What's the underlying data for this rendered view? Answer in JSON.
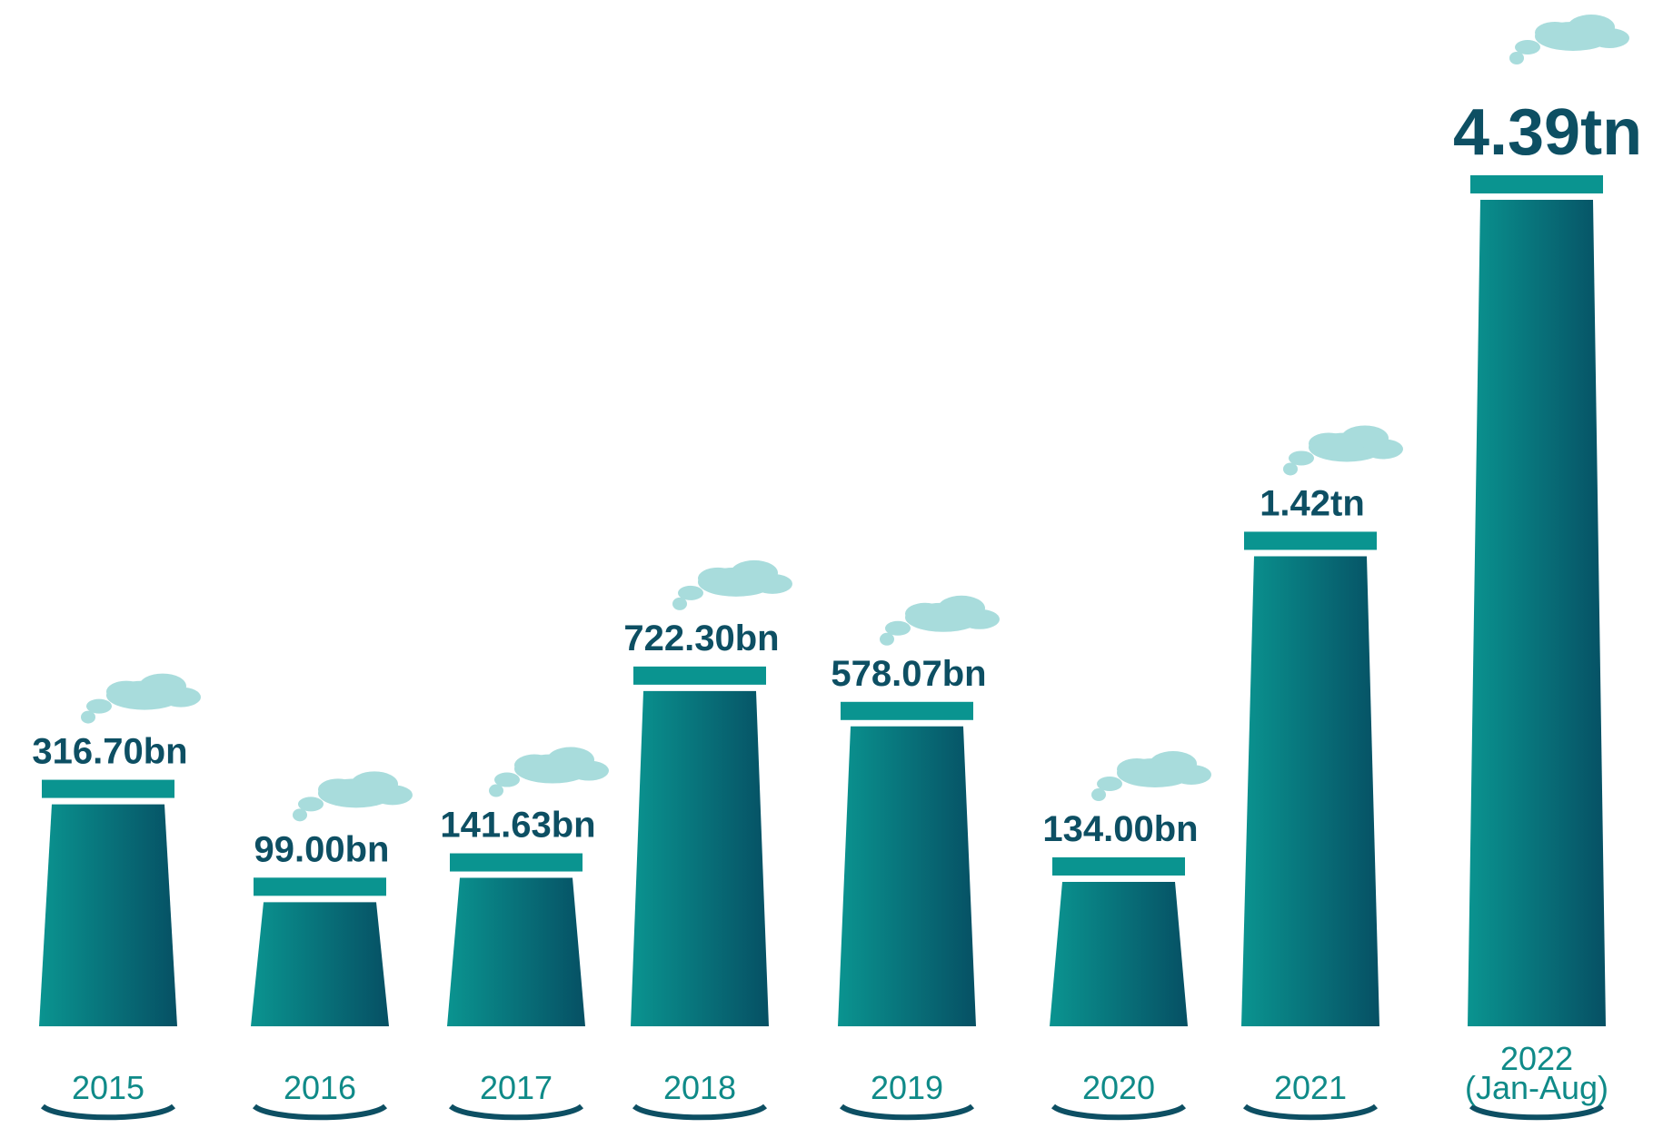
{
  "chart_data": {
    "type": "chimney",
    "categories": [
      "2015",
      "2016",
      "2017",
      "2018",
      "2019",
      "2020",
      "2021",
      "2022 (Jan-Aug)"
    ],
    "values": [
      316.7,
      99,
      141.63,
      722.3,
      578.07,
      134,
      1420,
      4390
    ],
    "value_labels": [
      "316.70bn",
      "99.00bn",
      "141.63bn",
      "722.30bn",
      "578.07bn",
      "134.00bn",
      "1.42tn",
      "4.39tn"
    ],
    "color": "#07616d"
  }
}
